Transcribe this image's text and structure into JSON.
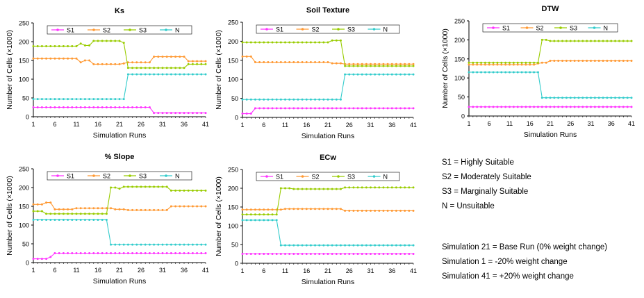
{
  "chart_data": [
    {
      "type": "line",
      "title": "Ks",
      "xlabel": "Simulation Runs",
      "ylabel": "Number of Cells (×1000)",
      "ylim": [
        0,
        250
      ],
      "xlim": [
        1,
        41
      ],
      "yticks": [
        "0",
        "50",
        "100",
        "150",
        "200",
        "250"
      ],
      "xticks": [
        "1",
        "6",
        "11",
        "16",
        "21",
        "26",
        "31",
        "36",
        "41"
      ],
      "grid": false,
      "legend": "top",
      "series": [
        {
          "name": "S1",
          "color": "#ff33ff",
          "values": [
            25,
            25,
            25,
            25,
            25,
            25,
            25,
            25,
            25,
            25,
            25,
            25,
            25,
            25,
            25,
            25,
            25,
            25,
            25,
            25,
            25,
            25,
            25,
            25,
            25,
            25,
            25,
            25,
            10,
            10,
            10,
            10,
            10,
            10,
            10,
            10,
            10,
            10,
            10,
            10,
            10
          ]
        },
        {
          "name": "S2",
          "color": "#ff9933",
          "values": [
            155,
            155,
            155,
            155,
            155,
            155,
            155,
            155,
            155,
            155,
            155,
            145,
            150,
            150,
            140,
            140,
            140,
            140,
            140,
            140,
            140,
            142,
            145,
            145,
            145,
            145,
            145,
            145,
            160,
            160,
            160,
            160,
            160,
            160,
            160,
            160,
            148,
            148,
            148,
            148,
            148
          ]
        },
        {
          "name": "S3",
          "color": "#99cc00",
          "values": [
            188,
            188,
            188,
            188,
            188,
            188,
            188,
            188,
            188,
            188,
            188,
            195,
            190,
            190,
            202,
            202,
            202,
            202,
            202,
            202,
            202,
            197,
            130,
            130,
            130,
            130,
            130,
            130,
            130,
            130,
            130,
            130,
            130,
            130,
            130,
            130,
            140,
            140,
            140,
            140,
            140
          ]
        },
        {
          "name": "N",
          "color": "#33cccc",
          "values": [
            47,
            47,
            47,
            47,
            47,
            47,
            47,
            47,
            47,
            47,
            47,
            47,
            47,
            47,
            47,
            47,
            47,
            47,
            47,
            47,
            47,
            47,
            113,
            113,
            113,
            113,
            113,
            113,
            113,
            113,
            113,
            113,
            113,
            113,
            113,
            113,
            113,
            113,
            113,
            113,
            113
          ]
        }
      ]
    },
    {
      "type": "line",
      "title": "Soil Texture",
      "xlabel": "Simulation Runs",
      "ylabel": "Number of Cells (×1000)",
      "ylim": [
        0,
        250
      ],
      "xlim": [
        1,
        41
      ],
      "yticks": [
        "0",
        "50",
        "100",
        "150",
        "200",
        "250"
      ],
      "xticks": [
        "1",
        "6",
        "11",
        "16",
        "21",
        "26",
        "31",
        "36",
        "41"
      ],
      "grid": false,
      "legend": "top",
      "series": [
        {
          "name": "S1",
          "color": "#ff33ff",
          "values": [
            10,
            10,
            10,
            24,
            24,
            24,
            24,
            24,
            24,
            24,
            24,
            24,
            24,
            24,
            24,
            24,
            24,
            24,
            24,
            24,
            24,
            24,
            24,
            24,
            24,
            24,
            24,
            24,
            24,
            24,
            24,
            24,
            24,
            24,
            24,
            24,
            24,
            24,
            24,
            24,
            24
          ]
        },
        {
          "name": "S2",
          "color": "#ff9933",
          "values": [
            160,
            160,
            160,
            145,
            145,
            145,
            145,
            145,
            145,
            145,
            145,
            145,
            145,
            145,
            145,
            145,
            145,
            145,
            145,
            145,
            145,
            142,
            142,
            142,
            140,
            140,
            140,
            140,
            140,
            140,
            140,
            140,
            140,
            140,
            140,
            140,
            140,
            140,
            140,
            140,
            140
          ]
        },
        {
          "name": "S3",
          "color": "#99cc00",
          "values": [
            197,
            197,
            197,
            197,
            197,
            197,
            197,
            197,
            197,
            197,
            197,
            197,
            197,
            197,
            197,
            197,
            197,
            197,
            197,
            197,
            197,
            202,
            202,
            202,
            135,
            135,
            135,
            135,
            135,
            135,
            135,
            135,
            135,
            135,
            135,
            135,
            135,
            135,
            135,
            135,
            135
          ]
        },
        {
          "name": "N",
          "color": "#33cccc",
          "values": [
            47,
            47,
            47,
            47,
            47,
            47,
            47,
            47,
            47,
            47,
            47,
            47,
            47,
            47,
            47,
            47,
            47,
            47,
            47,
            47,
            47,
            47,
            47,
            47,
            113,
            113,
            113,
            113,
            113,
            113,
            113,
            113,
            113,
            113,
            113,
            113,
            113,
            113,
            113,
            113,
            113
          ]
        }
      ]
    },
    {
      "type": "line",
      "title": "DTW",
      "xlabel": "Simulation Runs",
      "ylabel": "Number of Cells (×1000)",
      "ylim": [
        0,
        250
      ],
      "xlim": [
        1,
        41
      ],
      "yticks": [
        "0",
        "50",
        "100",
        "150",
        "200",
        "250"
      ],
      "xticks": [
        "1",
        "6",
        "11",
        "16",
        "21",
        "26",
        "31",
        "36",
        "41"
      ],
      "grid": false,
      "legend": "top",
      "series": [
        {
          "name": "S1",
          "color": "#ff33ff",
          "values": [
            24,
            24,
            24,
            24,
            24,
            24,
            24,
            24,
            24,
            24,
            24,
            24,
            24,
            24,
            24,
            24,
            24,
            24,
            24,
            24,
            24,
            24,
            24,
            24,
            24,
            24,
            24,
            24,
            24,
            24,
            24,
            24,
            24,
            24,
            24,
            24,
            24,
            24,
            24,
            24,
            24
          ]
        },
        {
          "name": "S2",
          "color": "#ff9933",
          "values": [
            135,
            135,
            135,
            135,
            135,
            135,
            135,
            135,
            135,
            135,
            135,
            135,
            135,
            135,
            135,
            135,
            135,
            138,
            140,
            140,
            145,
            145,
            145,
            145,
            145,
            145,
            145,
            145,
            145,
            145,
            145,
            145,
            145,
            145,
            145,
            145,
            145,
            145,
            145,
            145,
            145
          ]
        },
        {
          "name": "S3",
          "color": "#99cc00",
          "values": [
            140,
            140,
            140,
            140,
            140,
            140,
            140,
            140,
            140,
            140,
            140,
            140,
            140,
            140,
            140,
            140,
            140,
            140,
            200,
            200,
            197,
            197,
            197,
            197,
            197,
            197,
            197,
            197,
            197,
            197,
            197,
            197,
            197,
            197,
            197,
            197,
            197,
            197,
            197,
            197,
            197
          ]
        },
        {
          "name": "N",
          "color": "#33cccc",
          "values": [
            115,
            115,
            115,
            115,
            115,
            115,
            115,
            115,
            115,
            115,
            115,
            115,
            115,
            115,
            115,
            115,
            115,
            115,
            48,
            48,
            48,
            48,
            48,
            48,
            48,
            48,
            48,
            48,
            48,
            48,
            48,
            48,
            48,
            48,
            48,
            48,
            48,
            48,
            48,
            48,
            48
          ]
        }
      ]
    },
    {
      "type": "line",
      "title": "% Slope",
      "xlabel": "Simulation Runs",
      "ylabel": "Number of Cells (×1000)",
      "ylim": [
        0,
        250
      ],
      "xlim": [
        1,
        41
      ],
      "yticks": [
        "0",
        "50",
        "100",
        "150",
        "200",
        "250"
      ],
      "xticks": [
        "1",
        "6",
        "11",
        "16",
        "21",
        "26",
        "31",
        "36",
        "41"
      ],
      "grid": false,
      "legend": "top",
      "series": [
        {
          "name": "S1",
          "color": "#ff33ff",
          "values": [
            10,
            10,
            10,
            10,
            15,
            25,
            25,
            25,
            25,
            25,
            25,
            25,
            25,
            25,
            25,
            25,
            25,
            25,
            25,
            25,
            25,
            25,
            25,
            25,
            25,
            25,
            25,
            25,
            25,
            25,
            25,
            25,
            25,
            25,
            25,
            25,
            25,
            25,
            25,
            25,
            25
          ]
        },
        {
          "name": "S2",
          "color": "#ff9933",
          "values": [
            155,
            155,
            155,
            160,
            160,
            142,
            142,
            142,
            142,
            142,
            145,
            145,
            145,
            145,
            145,
            145,
            145,
            145,
            145,
            142,
            142,
            142,
            140,
            140,
            140,
            140,
            140,
            140,
            140,
            140,
            140,
            140,
            150,
            150,
            150,
            150,
            150,
            150,
            150,
            150,
            150
          ]
        },
        {
          "name": "S3",
          "color": "#99cc00",
          "values": [
            137,
            137,
            137,
            130,
            130,
            130,
            130,
            130,
            130,
            130,
            130,
            130,
            130,
            130,
            130,
            130,
            130,
            130,
            200,
            200,
            197,
            202,
            202,
            202,
            202,
            202,
            202,
            202,
            202,
            202,
            202,
            202,
            192,
            192,
            192,
            192,
            192,
            192,
            192,
            192,
            192
          ]
        },
        {
          "name": "N",
          "color": "#33cccc",
          "values": [
            114,
            114,
            114,
            114,
            114,
            114,
            114,
            114,
            114,
            114,
            114,
            114,
            114,
            114,
            114,
            114,
            114,
            114,
            48,
            48,
            48,
            48,
            48,
            48,
            48,
            48,
            48,
            48,
            48,
            48,
            48,
            48,
            48,
            48,
            48,
            48,
            48,
            48,
            48,
            48,
            48
          ]
        }
      ]
    },
    {
      "type": "line",
      "title": "ECw",
      "xlabel": "Simulation Runs",
      "ylabel": "Number of Cells (×1000)",
      "ylim": [
        0,
        250
      ],
      "xlim": [
        1,
        41
      ],
      "yticks": [
        "0",
        "50",
        "100",
        "150",
        "200",
        "250"
      ],
      "xticks": [
        "1",
        "6",
        "11",
        "16",
        "21",
        "26",
        "31",
        "36",
        "41"
      ],
      "grid": false,
      "legend": "top",
      "series": [
        {
          "name": "S1",
          "color": "#ff33ff",
          "values": [
            25,
            25,
            25,
            25,
            25,
            25,
            25,
            25,
            25,
            25,
            25,
            25,
            25,
            25,
            25,
            25,
            25,
            25,
            25,
            25,
            25,
            25,
            25,
            25,
            25,
            25,
            25,
            25,
            25,
            25,
            25,
            25,
            25,
            25,
            25,
            25,
            25,
            25,
            25,
            25,
            25
          ]
        },
        {
          "name": "S2",
          "color": "#ff9933",
          "values": [
            143,
            143,
            143,
            143,
            143,
            143,
            143,
            143,
            143,
            143,
            145,
            145,
            145,
            145,
            145,
            145,
            145,
            145,
            145,
            145,
            145,
            145,
            145,
            145,
            140,
            140,
            140,
            140,
            140,
            140,
            140,
            140,
            140,
            140,
            140,
            140,
            140,
            140,
            140,
            140,
            140
          ]
        },
        {
          "name": "S3",
          "color": "#99cc00",
          "values": [
            130,
            130,
            130,
            130,
            130,
            130,
            130,
            130,
            130,
            200,
            200,
            200,
            198,
            198,
            198,
            198,
            198,
            198,
            198,
            198,
            198,
            198,
            198,
            198,
            202,
            202,
            202,
            202,
            202,
            202,
            202,
            202,
            202,
            202,
            202,
            202,
            202,
            202,
            202,
            202,
            202
          ]
        },
        {
          "name": "N",
          "color": "#33cccc",
          "values": [
            115,
            115,
            115,
            115,
            115,
            115,
            115,
            115,
            115,
            48,
            48,
            48,
            48,
            48,
            48,
            48,
            48,
            48,
            48,
            48,
            48,
            48,
            48,
            48,
            48,
            48,
            48,
            48,
            48,
            48,
            48,
            48,
            48,
            48,
            48,
            48,
            48,
            48,
            48,
            48,
            48
          ]
        }
      ]
    }
  ],
  "legend_notes": {
    "categories": [
      "S1 = Highly Suitable",
      "S2 = Moderately Suitable",
      "S3 = Marginally Suitable",
      "N = Unsuitable"
    ],
    "simulations": [
      "Simulation 21 = Base Run (0% weight change)",
      "Simulation 1 = -20% weight change",
      "Simulation 41 = +20% weight change"
    ]
  }
}
